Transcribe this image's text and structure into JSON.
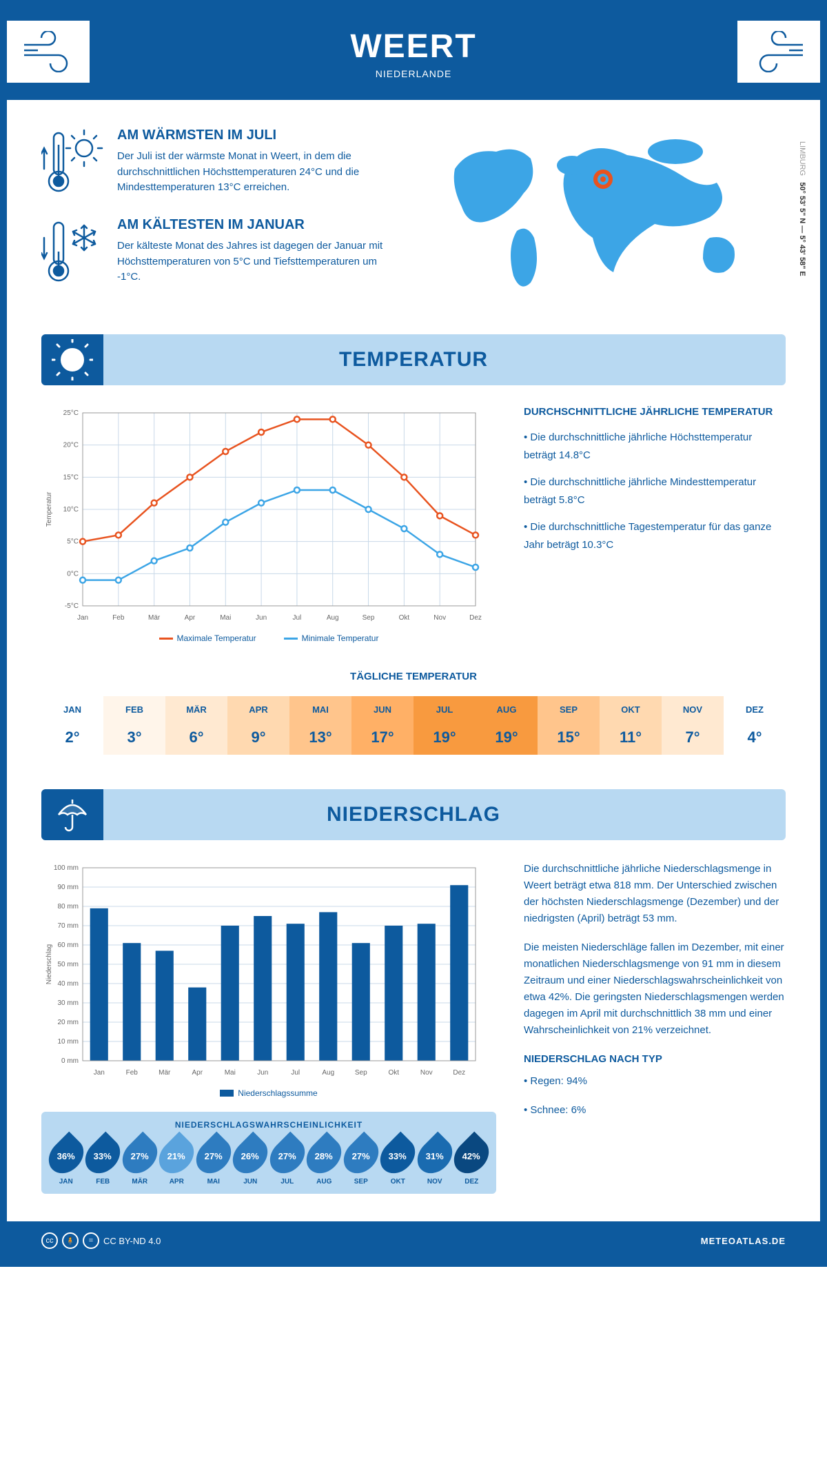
{
  "header": {
    "title": "WEERT",
    "subtitle": "NIEDERLANDE"
  },
  "coords": {
    "region": "LIMBURG",
    "lat": "50° 53' 5\" N",
    "sep": " — ",
    "lon": "5° 43' 58\" E"
  },
  "warmest": {
    "title": "AM WÄRMSTEN IM JULI",
    "body": "Der Juli ist der wärmste Monat in Weert, in dem die durchschnittlichen Höchsttemperaturen 24°C und die Mindesttemperaturen 13°C erreichen."
  },
  "coldest": {
    "title": "AM KÄLTESTEN IM JANUAR",
    "body": "Der kälteste Monat des Jahres ist dagegen der Januar mit Höchsttemperaturen von 5°C und Tiefsttemperaturen um -1°C."
  },
  "sections": {
    "temp": "TEMPERATUR",
    "precip": "NIEDERSCHLAG"
  },
  "months": [
    "Jan",
    "Feb",
    "Mär",
    "Apr",
    "Mai",
    "Jun",
    "Jul",
    "Aug",
    "Sep",
    "Okt",
    "Nov",
    "Dez"
  ],
  "months_upper": [
    "JAN",
    "FEB",
    "MÄR",
    "APR",
    "MAI",
    "JUN",
    "JUL",
    "AUG",
    "SEP",
    "OKT",
    "NOV",
    "DEZ"
  ],
  "temp_chart": {
    "type": "line",
    "y_label": "Temperatur",
    "y_ticks": [
      "-5°C",
      "0°C",
      "5°C",
      "10°C",
      "15°C",
      "20°C",
      "25°C"
    ],
    "ylim": [
      -5,
      25
    ],
    "max_series": {
      "label": "Maximale Temperatur",
      "color": "#e8531f",
      "values": [
        5,
        6,
        11,
        15,
        19,
        22,
        24,
        24,
        20,
        15,
        9,
        6
      ]
    },
    "min_series": {
      "label": "Minimale Temperatur",
      "color": "#3ca5e6",
      "values": [
        -1,
        -1,
        2,
        4,
        8,
        11,
        13,
        13,
        10,
        7,
        3,
        1
      ]
    },
    "grid_color": "#c8d8e8",
    "background": "#ffffff"
  },
  "temp_info": {
    "heading": "DURCHSCHNITTLICHE JÄHRLICHE TEMPERATUR",
    "b1": "• Die durchschnittliche jährliche Höchsttemperatur beträgt 14.8°C",
    "b2": "• Die durchschnittliche jährliche Mindesttemperatur beträgt 5.8°C",
    "b3": "• Die durchschnittliche Tagestemperatur für das ganze Jahr beträgt 10.3°C"
  },
  "daily": {
    "title": "TÄGLICHE TEMPERATUR",
    "values": [
      "2°",
      "3°",
      "6°",
      "9°",
      "13°",
      "17°",
      "19°",
      "19°",
      "15°",
      "11°",
      "7°",
      "4°"
    ],
    "colors": [
      "#ffffff",
      "#fff5ea",
      "#ffe9d1",
      "#ffd9b0",
      "#ffc58c",
      "#ffb066",
      "#f89a3f",
      "#f89a3f",
      "#ffc58c",
      "#ffd9b0",
      "#ffe9d1",
      "#ffffff"
    ]
  },
  "precip_chart": {
    "type": "bar",
    "y_label": "Niederschlag",
    "y_ticks": [
      "0 mm",
      "10 mm",
      "20 mm",
      "30 mm",
      "40 mm",
      "50 mm",
      "60 mm",
      "70 mm",
      "80 mm",
      "90 mm",
      "100 mm"
    ],
    "ylim": [
      0,
      100
    ],
    "bar_color": "#0d5a9e",
    "legend": "Niederschlagssumme",
    "values": [
      79,
      61,
      57,
      38,
      70,
      75,
      71,
      77,
      61,
      70,
      71,
      91
    ],
    "grid_color": "#c8d8e8"
  },
  "precip_text": {
    "p1": "Die durchschnittliche jährliche Niederschlagsmenge in Weert beträgt etwa 818 mm. Der Unterschied zwischen der höchsten Niederschlagsmenge (Dezember) und der niedrigsten (April) beträgt 53 mm.",
    "p2": "Die meisten Niederschläge fallen im Dezember, mit einer monatlichen Niederschlagsmenge von 91 mm in diesem Zeitraum und einer Niederschlagswahrscheinlichkeit von etwa 42%. Die geringsten Niederschlagsmengen werden dagegen im April mit durchschnittlich 38 mm und einer Wahrscheinlichkeit von 21% verzeichnet.",
    "type_head": "NIEDERSCHLAG NACH TYP",
    "type_1": "• Regen: 94%",
    "type_2": "• Schnee: 6%"
  },
  "prob": {
    "title": "NIEDERSCHLAGSWAHRSCHEINLICHKEIT",
    "values": [
      "36%",
      "33%",
      "27%",
      "21%",
      "27%",
      "26%",
      "27%",
      "28%",
      "27%",
      "33%",
      "31%",
      "42%"
    ],
    "colors": [
      "#0d5a9e",
      "#0d5a9e",
      "#2e7cc0",
      "#5aa3dd",
      "#2e7cc0",
      "#2e7cc0",
      "#2e7cc0",
      "#2e7cc0",
      "#2e7cc0",
      "#0d5a9e",
      "#1a6bb0",
      "#0a4880"
    ]
  },
  "footer": {
    "license": "CC BY-ND 4.0",
    "site": "METEOATLAS.DE"
  },
  "colors": {
    "primary": "#0d5a9e",
    "light": "#b8d9f2",
    "accent": "#3ca5e6",
    "marker": "#e8531f"
  }
}
